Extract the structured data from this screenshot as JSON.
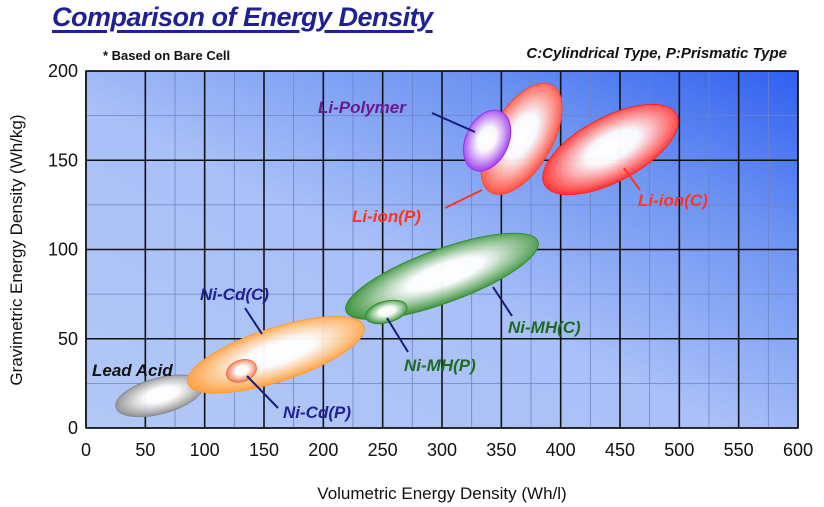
{
  "header": {
    "title": "Comparison of Energy Density",
    "note": "* Based on Bare Cell",
    "type_key": "C:Cylindrical Type, P:Prismatic Type"
  },
  "chart_data": {
    "type": "scatter",
    "title": "Comparison of Energy Density",
    "xlabel": "Volumetric  Energy  Density (Wh/l)",
    "ylabel": "Gravimetric  Energy  Density (Wh/kg)",
    "xlim": [
      0,
      600
    ],
    "ylim": [
      0,
      200
    ],
    "xticks": [
      0,
      50,
      100,
      150,
      200,
      250,
      300,
      350,
      400,
      450,
      500,
      550,
      600
    ],
    "yticks": [
      0,
      50,
      100,
      150,
      200
    ],
    "grid": true,
    "series": [
      {
        "name": "Lead Acid",
        "color": "#8a8a8a",
        "label_color": "#111111",
        "x_range": [
          25,
          100
        ],
        "y_range": [
          8,
          30
        ],
        "center": [
          62,
          18
        ],
        "rx": 38,
        "ry": 10,
        "angle": 15
      },
      {
        "name": "Ni-Cd(C)",
        "color": "#ff9a33",
        "label_color": "#1f1f96",
        "x_range": [
          85,
          235
        ],
        "y_range": [
          22,
          60
        ],
        "center": [
          160,
          41
        ],
        "rx": 78,
        "ry": 15,
        "angle": 18
      },
      {
        "name": "Ni-Cd(P)",
        "color": "#f07040",
        "label_color": "#1f1f96",
        "x_range": [
          118,
          145
        ],
        "y_range": [
          25,
          38
        ],
        "center": [
          131,
          32
        ],
        "rx": 13,
        "ry": 6,
        "angle": 20
      },
      {
        "name": "Ni-MH(C)",
        "color": "#2e8b2e",
        "label_color": "#1e6b1e",
        "x_range": [
          220,
          385
        ],
        "y_range": [
          65,
          105
        ],
        "center": [
          300,
          85
        ],
        "rx": 86,
        "ry": 15,
        "angle": 20
      },
      {
        "name": "Ni-MH(P)",
        "color": "#2e8b2e",
        "label_color": "#1e6b1e",
        "x_range": [
          235,
          270
        ],
        "y_range": [
          58,
          73
        ],
        "center": [
          253,
          65
        ],
        "rx": 18,
        "ry": 6,
        "angle": 15
      },
      {
        "name": "Li-ion(P)",
        "color": "#ff4433",
        "label_color": "#ff3322",
        "x_range": [
          315,
          420
        ],
        "y_range": [
          130,
          195
        ],
        "center": [
          367,
          162
        ],
        "rx": 52,
        "ry": 17,
        "angle": 60
      },
      {
        "name": "Li-Polymer",
        "color": "#9a33ee",
        "label_color": "#6a1a8a",
        "x_range": [
          310,
          365
        ],
        "y_range": [
          137,
          185
        ],
        "center": [
          338,
          161
        ],
        "rx": 27,
        "ry": 12,
        "angle": 65
      },
      {
        "name": "Li-ion(C)",
        "color": "#ff2222",
        "label_color": "#ff3322",
        "x_range": [
          380,
          505
        ],
        "y_range": [
          135,
          178
        ],
        "center": [
          442,
          156
        ],
        "rx": 63,
        "ry": 18,
        "angle": 28
      }
    ]
  }
}
